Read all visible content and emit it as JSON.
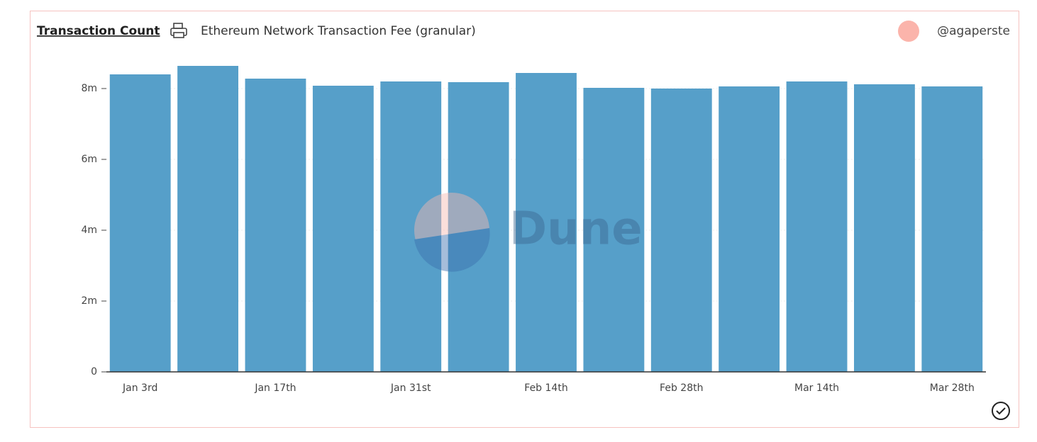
{
  "chart_data": {
    "type": "bar",
    "title": "Transaction Count",
    "subtitle": "Ethereum Network Transaction Fee (granular)",
    "author": "@agaperste",
    "watermark": "Dune",
    "categories": [
      "Jan 3rd",
      null,
      "Jan 17th",
      null,
      "Jan 31st",
      null,
      "Feb 14th",
      null,
      "Feb 28th",
      null,
      "Mar 14th",
      null,
      "Mar 28th"
    ],
    "values": [
      8400000,
      8640000,
      8280000,
      8080000,
      8200000,
      8180000,
      8440000,
      8020000,
      8000000,
      8060000,
      8200000,
      8120000,
      8060000
    ],
    "color": "#569fc9",
    "ylim": [
      0,
      8800000
    ],
    "yticks": [
      0,
      {
        "value": 2000000,
        "label": "2m"
      },
      {
        "value": 4000000,
        "label": "4m"
      },
      {
        "value": 6000000,
        "label": "6m"
      },
      {
        "value": 8000000,
        "label": "8m"
      }
    ],
    "grid": true
  }
}
